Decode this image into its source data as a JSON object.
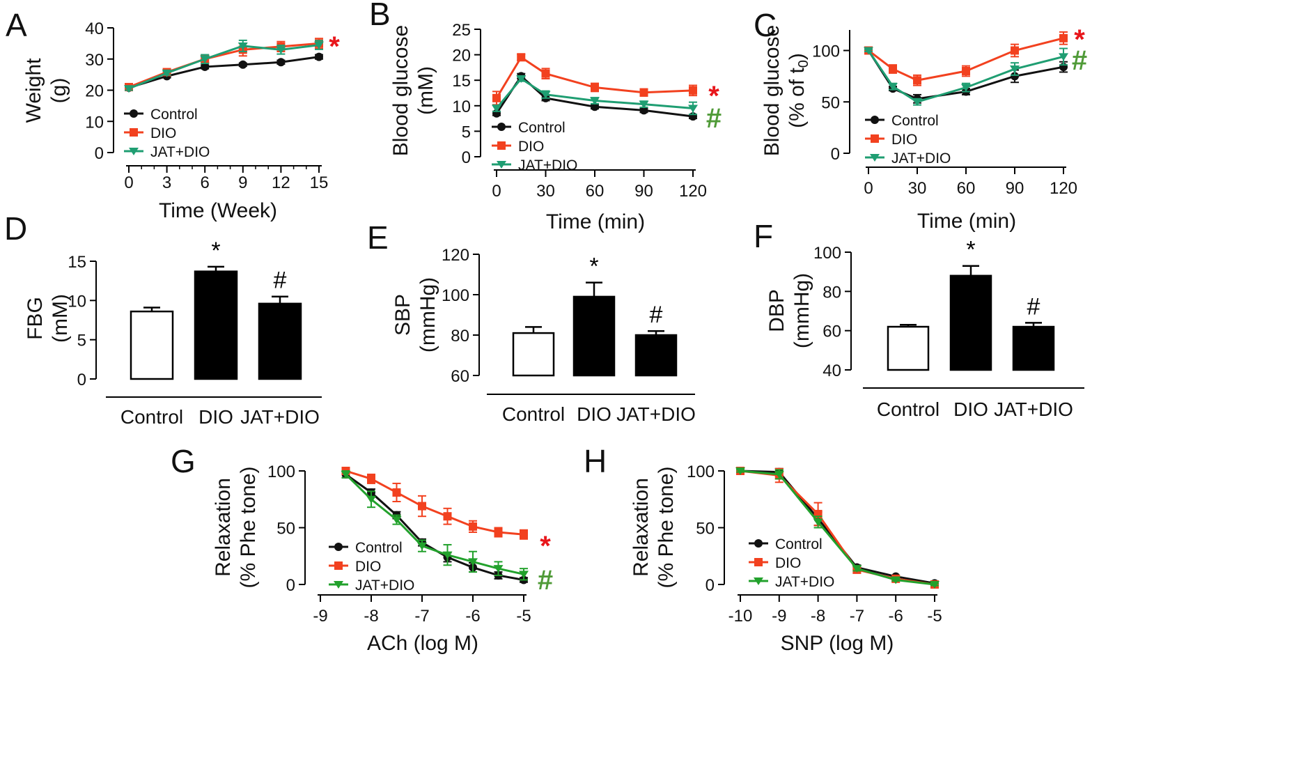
{
  "figure": {
    "title": "Metabolic, blood pressure and vascular relaxation outcomes"
  },
  "colors": {
    "control": "#111111",
    "dio": "#f2411f",
    "jat_line": "#1f9e72",
    "jat_vascular": "#22a12c",
    "sig_dio": "#e8161b",
    "sig_jat": "#4f9a37"
  },
  "chart_data": [
    {
      "panel": "A",
      "type": "line",
      "xlabel": "Time (Week)",
      "ylabel": "Weight (g)",
      "ylabel_lines": [
        "Weight",
        "(g)"
      ],
      "x": [
        0,
        3,
        6,
        9,
        12,
        15
      ],
      "xlim": [
        0,
        15
      ],
      "ylim": [
        0,
        40
      ],
      "xticks": [
        0,
        3,
        6,
        9,
        12,
        15
      ],
      "yticks": [
        0,
        10,
        20,
        30,
        40
      ],
      "series": [
        {
          "name": "Control",
          "key": "control",
          "marker": "circle",
          "values": [
            20.8,
            24.5,
            27.5,
            28.2,
            29,
            30.7
          ],
          "errors": [
            0.4,
            0.5,
            0.6,
            0.5,
            0.6,
            0.7
          ]
        },
        {
          "name": "DIO",
          "key": "dio",
          "marker": "square",
          "values": [
            21,
            25.8,
            30,
            33,
            34,
            35
          ],
          "errors": [
            0.5,
            0.6,
            1.2,
            2,
            1.6,
            1.6
          ]
        },
        {
          "name": "JAT+DIO",
          "key": "jat_line",
          "marker": "triangle",
          "values": [
            20.5,
            25.5,
            30,
            34.2,
            33,
            34.5
          ],
          "errors": [
            0.5,
            0.6,
            1.4,
            1.8,
            1.4,
            1.4
          ]
        }
      ],
      "annotations": [
        {
          "text": "*",
          "series": "DIO"
        }
      ]
    },
    {
      "panel": "B",
      "type": "line",
      "xlabel": "Time (min)",
      "ylabel": "Blood glucose (mM)",
      "ylabel_lines": [
        "Blood glucose",
        "(mM)"
      ],
      "x": [
        0,
        15,
        30,
        60,
        90,
        120
      ],
      "xlim": [
        0,
        120
      ],
      "ylim": [
        0,
        25
      ],
      "xticks": [
        0,
        30,
        60,
        90,
        120
      ],
      "yticks": [
        0,
        5,
        10,
        15,
        20,
        25
      ],
      "series": [
        {
          "name": "Control",
          "key": "control",
          "marker": "circle",
          "values": [
            8.5,
            15.8,
            11.5,
            9.8,
            9.1,
            7.9
          ],
          "errors": [
            0.4,
            0.5,
            0.5,
            0.4,
            0.4,
            0.4
          ]
        },
        {
          "name": "DIO",
          "key": "dio",
          "marker": "square",
          "values": [
            11.5,
            19.5,
            16.3,
            13.6,
            12.6,
            13.0
          ],
          "errors": [
            1.3,
            0.6,
            1.0,
            0.8,
            0.7,
            1.0
          ]
        },
        {
          "name": "JAT+DIO",
          "key": "jat_line",
          "marker": "triangle",
          "values": [
            9.5,
            15.3,
            12.2,
            11.0,
            10.3,
            9.5
          ],
          "errors": [
            0.6,
            0.5,
            0.7,
            0.6,
            0.6,
            1.2
          ]
        }
      ],
      "annotations": [
        {
          "text": "*",
          "series": "DIO"
        },
        {
          "text": "#",
          "series": "JAT+DIO"
        }
      ]
    },
    {
      "panel": "C",
      "type": "line",
      "xlabel": "Time (min)",
      "ylabel": "Blood glucose (% of t0)",
      "ylabel_lines": [
        "Blood glucose",
        "(% of t"
      ],
      "ylabel_subscript": "0",
      "ylabel_suffix": ")",
      "x": [
        0,
        15,
        30,
        60,
        90,
        120
      ],
      "xlim": [
        0,
        120
      ],
      "ylim": [
        0,
        120
      ],
      "xticks": [
        0,
        30,
        60,
        90,
        120
      ],
      "yticks": [
        0,
        50,
        100
      ],
      "series": [
        {
          "name": "Control",
          "key": "control",
          "marker": "circle",
          "values": [
            100,
            63,
            53,
            60,
            75,
            84
          ],
          "errors": [
            1,
            2,
            4,
            3,
            6,
            5
          ]
        },
        {
          "name": "DIO",
          "key": "dio",
          "marker": "square",
          "values": [
            100,
            82,
            71,
            80,
            100,
            112
          ],
          "errors": [
            1,
            4,
            5,
            5,
            6,
            6
          ]
        },
        {
          "name": "JAT+DIO",
          "key": "jat_line",
          "marker": "triangle",
          "values": [
            100,
            65,
            50,
            64,
            82,
            94
          ],
          "errors": [
            1,
            3,
            3,
            4,
            6,
            8
          ]
        }
      ],
      "annotations": [
        {
          "text": "*",
          "series": "DIO"
        },
        {
          "text": "#",
          "series": "JAT+DIO"
        }
      ]
    },
    {
      "panel": "D",
      "type": "bar",
      "xlabel": "",
      "ylabel": "FBG (mM)",
      "ylabel_lines": [
        "FBG",
        "(mM)"
      ],
      "categories": [
        "Control",
        "DIO",
        "JAT+DIO"
      ],
      "values": [
        8.6,
        13.7,
        9.6
      ],
      "errors": [
        0.5,
        0.6,
        0.9
      ],
      "fills": [
        "white",
        "black",
        "black"
      ],
      "marks": [
        "",
        "*",
        "#"
      ],
      "ylim": [
        0,
        15
      ],
      "yticks": [
        0,
        5,
        10,
        15
      ]
    },
    {
      "panel": "E",
      "type": "bar",
      "xlabel": "",
      "ylabel": "SBP (mmHg)",
      "ylabel_lines": [
        "SBP",
        "(mmHg)"
      ],
      "categories": [
        "Control",
        "DIO",
        "JAT+DIO"
      ],
      "values": [
        81,
        99,
        80
      ],
      "errors": [
        3,
        7,
        2
      ],
      "fills": [
        "white",
        "black",
        "black"
      ],
      "marks": [
        "",
        "*",
        "#"
      ],
      "ylim": [
        60,
        120
      ],
      "yticks": [
        60,
        80,
        100,
        120
      ]
    },
    {
      "panel": "F",
      "type": "bar",
      "xlabel": "",
      "ylabel": "DBP (mmHg)",
      "ylabel_lines": [
        "DBP",
        "(mmHg)"
      ],
      "categories": [
        "Control",
        "DIO",
        "JAT+DIO"
      ],
      "values": [
        62,
        88,
        62
      ],
      "errors": [
        1,
        5,
        2
      ],
      "fills": [
        "white",
        "black",
        "black"
      ],
      "marks": [
        "",
        "*",
        "#"
      ],
      "ylim": [
        40,
        100
      ],
      "yticks": [
        40,
        60,
        80,
        100
      ]
    },
    {
      "panel": "G",
      "type": "line",
      "xlabel": "ACh (log M)",
      "ylabel": "Relaxation (% Phe tone)",
      "ylabel_lines": [
        "Relaxation",
        "(% Phe tone)"
      ],
      "x": [
        -8.5,
        -8,
        -7.5,
        -7,
        -6.5,
        -6,
        -5.5,
        -5
      ],
      "xlim": [
        -9,
        -5
      ],
      "ylim": [
        0,
        100
      ],
      "xticks": [
        -9,
        -8,
        -7,
        -6,
        -5
      ],
      "yticks": [
        0,
        50,
        100
      ],
      "series": [
        {
          "name": "Control",
          "key": "control",
          "marker": "circle",
          "values": [
            97,
            81,
            61,
            37,
            24,
            15,
            8,
            4
          ],
          "errors": [
            3,
            3,
            3,
            3,
            4,
            4,
            3,
            2
          ]
        },
        {
          "name": "DIO",
          "key": "dio",
          "marker": "square",
          "values": [
            100,
            93,
            81,
            69,
            60,
            51,
            46,
            44
          ],
          "errors": [
            1,
            4,
            8,
            9,
            7,
            5,
            4,
            4
          ]
        },
        {
          "name": "JAT+DIO",
          "key": "jat_vascular",
          "marker": "triangle",
          "values": [
            97,
            75,
            57,
            34,
            26,
            20,
            14,
            9
          ],
          "errors": [
            3,
            7,
            4,
            5,
            9,
            9,
            6,
            5
          ]
        }
      ],
      "annotations": [
        {
          "text": "*",
          "series": "DIO"
        },
        {
          "text": "#",
          "series": "JAT+DIO"
        }
      ]
    },
    {
      "panel": "H",
      "type": "line",
      "xlabel": "SNP (log M)",
      "ylabel": "Relaxation (% Phe tone)",
      "ylabel_lines": [
        "Relaxation",
        "(% Phe tone)"
      ],
      "x": [
        -10,
        -9,
        -8,
        -7,
        -6,
        -5
      ],
      "xlim": [
        -10,
        -5
      ],
      "ylim": [
        0,
        100
      ],
      "xticks": [
        -10,
        -9,
        -8,
        -7,
        -6,
        -5
      ],
      "yticks": [
        0,
        50,
        100
      ],
      "series": [
        {
          "name": "Control",
          "key": "control",
          "marker": "circle",
          "values": [
            100,
            99,
            58,
            15,
            7,
            1
          ],
          "errors": [
            1,
            3,
            6,
            2,
            1,
            1
          ]
        },
        {
          "name": "DIO",
          "key": "dio",
          "marker": "square",
          "values": [
            100,
            96,
            62,
            13,
            5,
            0
          ],
          "errors": [
            1,
            6,
            10,
            3,
            2,
            1
          ]
        },
        {
          "name": "JAT+DIO",
          "key": "jat_vascular",
          "marker": "triangle",
          "values": [
            100,
            97,
            55,
            14,
            4,
            0
          ],
          "errors": [
            1,
            4,
            5,
            2,
            1,
            1
          ]
        }
      ],
      "annotations": []
    }
  ]
}
